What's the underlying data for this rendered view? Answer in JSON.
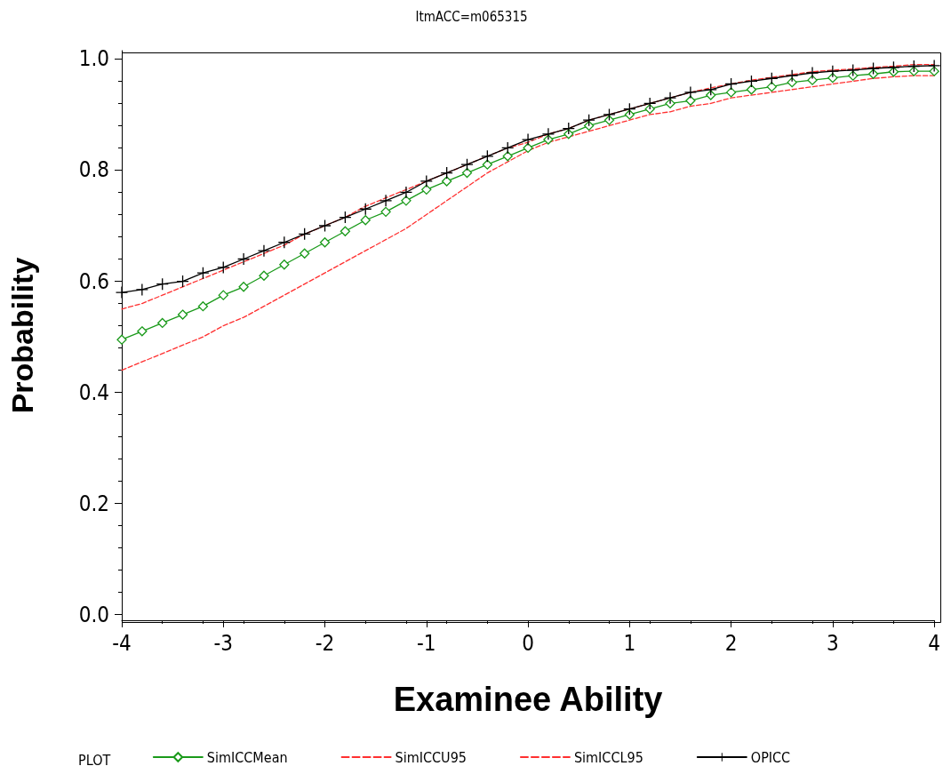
{
  "chart_data": {
    "type": "line",
    "title": "ItmACC=m065315",
    "xlabel": "Examinee Ability",
    "ylabel": "Probability",
    "legend_title": "PLOT",
    "legend": "bottom",
    "grid": false,
    "x": [
      -4,
      -3.8,
      -3.6,
      -3.4,
      -3.2,
      -3,
      -2.8,
      -2.6,
      -2.4,
      -2.2,
      -2,
      -1.8,
      -1.6,
      -1.4,
      -1.2,
      -1,
      -0.8,
      -0.6,
      -0.4,
      -0.2,
      0,
      0.2,
      0.4,
      0.6,
      0.8,
      1,
      1.2,
      1.4,
      1.6,
      1.8,
      2,
      2.2,
      2.4,
      2.6,
      2.8,
      3,
      3.2,
      3.4,
      3.6,
      3.8,
      4
    ],
    "xlim": [
      -4,
      4
    ],
    "xticks": [
      -4,
      -3,
      -2,
      -1,
      0,
      1,
      2,
      3,
      4
    ],
    "ylim": [
      -0.01,
      1.015
    ],
    "yticks": [
      {
        "value": 0,
        "label": "0.0"
      },
      {
        "value": 0.2,
        "label": "0.2"
      },
      {
        "value": 0.4,
        "label": "0.4"
      },
      {
        "value": 0.6,
        "label": "0.6"
      },
      {
        "value": 0.8,
        "label": "0.8"
      },
      {
        "value": 1,
        "label": "1.0"
      }
    ],
    "series": [
      {
        "name": "SimICCMean",
        "color": "#1a9a1a",
        "marker": "diamond",
        "line_style": "solid",
        "values": [
          0.495,
          0.51,
          0.525,
          0.54,
          0.555,
          0.575,
          0.59,
          0.61,
          0.63,
          0.65,
          0.67,
          0.69,
          0.71,
          0.725,
          0.745,
          0.765,
          0.78,
          0.795,
          0.81,
          0.825,
          0.84,
          0.855,
          0.865,
          0.88,
          0.89,
          0.9,
          0.91,
          0.92,
          0.925,
          0.935,
          0.94,
          0.945,
          0.95,
          0.958,
          0.962,
          0.966,
          0.97,
          0.973,
          0.977,
          0.978,
          0.978
        ]
      },
      {
        "name": "SimICCU95",
        "color": "#ff3030",
        "marker": "none",
        "line_style": "dashed",
        "values": [
          0.55,
          0.56,
          0.575,
          0.59,
          0.605,
          0.62,
          0.635,
          0.65,
          0.665,
          0.685,
          0.7,
          0.715,
          0.735,
          0.75,
          0.765,
          0.78,
          0.795,
          0.81,
          0.825,
          0.84,
          0.85,
          0.865,
          0.875,
          0.89,
          0.9,
          0.91,
          0.92,
          0.93,
          0.94,
          0.948,
          0.955,
          0.962,
          0.967,
          0.972,
          0.977,
          0.98,
          0.982,
          0.985,
          0.987,
          0.99,
          0.99
        ]
      },
      {
        "name": "SimICCL95",
        "color": "#ff3030",
        "marker": "none",
        "line_style": "dashed",
        "values": [
          0.44,
          0.455,
          0.47,
          0.485,
          0.5,
          0.52,
          0.535,
          0.555,
          0.575,
          0.595,
          0.615,
          0.635,
          0.655,
          0.675,
          0.695,
          0.72,
          0.745,
          0.77,
          0.795,
          0.815,
          0.835,
          0.85,
          0.86,
          0.87,
          0.88,
          0.89,
          0.9,
          0.905,
          0.915,
          0.92,
          0.93,
          0.935,
          0.94,
          0.945,
          0.95,
          0.955,
          0.96,
          0.965,
          0.968,
          0.97,
          0.97
        ]
      },
      {
        "name": "OPICC",
        "color": "#000000",
        "marker": "cross",
        "line_style": "solid",
        "values": [
          0.58,
          0.585,
          0.595,
          0.6,
          0.615,
          0.625,
          0.64,
          0.655,
          0.67,
          0.685,
          0.7,
          0.715,
          0.73,
          0.745,
          0.76,
          0.78,
          0.795,
          0.81,
          0.825,
          0.84,
          0.855,
          0.865,
          0.875,
          0.89,
          0.9,
          0.91,
          0.92,
          0.93,
          0.94,
          0.945,
          0.955,
          0.96,
          0.965,
          0.97,
          0.975,
          0.978,
          0.98,
          0.983,
          0.985,
          0.987,
          0.988
        ]
      }
    ]
  }
}
